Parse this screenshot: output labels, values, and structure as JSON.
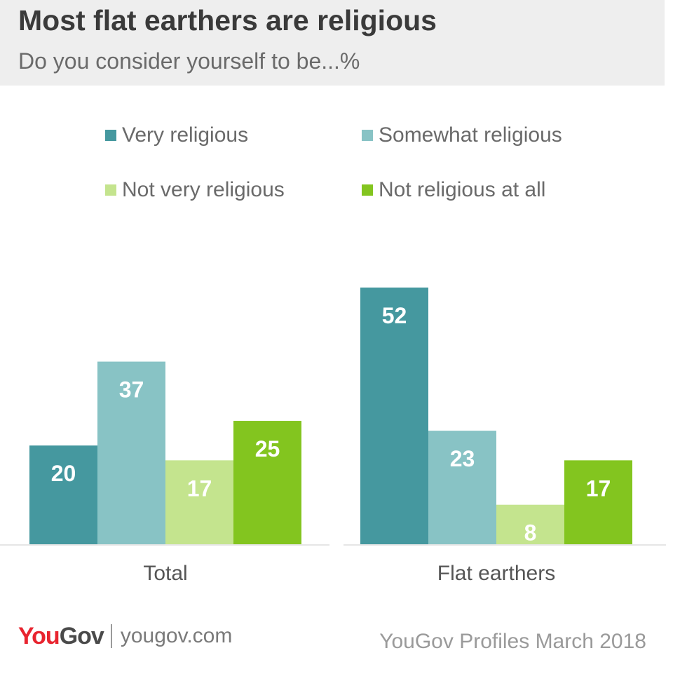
{
  "header": {
    "title": "Most flat earthers are religious",
    "subtitle": "Do you consider yourself to be...%"
  },
  "footer": {
    "logo_you": "You",
    "logo_gov": "Gov",
    "website": "yougov.com",
    "source": "YouGov Profiles March 2018"
  },
  "colors": {
    "very_religious": "#45989f",
    "somewhat_religious": "#88c3c5",
    "not_very_religious": "#c4e48e",
    "not_religious_at_all": "#83c51f",
    "title": "#3a3a3a",
    "logo_red": "#e8242f"
  },
  "chart_data": {
    "type": "bar",
    "title": "Most flat earthers are religious",
    "subtitle": "Do you consider yourself to be...%",
    "categories": [
      "Total",
      "Flat earthers"
    ],
    "series": [
      {
        "name": "Very religious",
        "values": [
          20,
          52
        ],
        "color": "#45989f"
      },
      {
        "name": "Somewhat religious",
        "values": [
          37,
          23
        ],
        "color": "#88c3c5"
      },
      {
        "name": "Not very religious",
        "values": [
          17,
          8
        ],
        "color": "#c4e48e"
      },
      {
        "name": "Not religious at all",
        "values": [
          25,
          17
        ],
        "color": "#83c51f"
      }
    ],
    "ylim": [
      0,
      52
    ],
    "grid": false,
    "legend_position": "top",
    "data_labels": true
  }
}
